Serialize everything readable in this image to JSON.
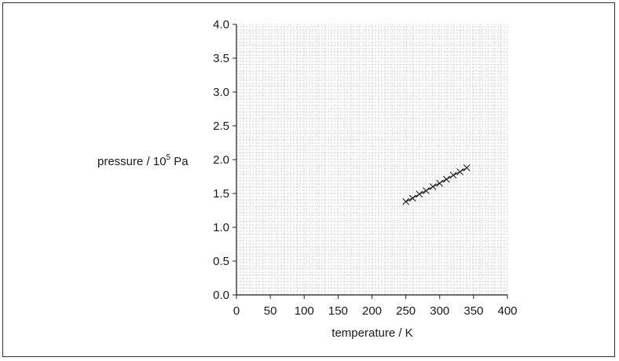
{
  "chart_data": {
    "type": "scatter",
    "xlabel": "temperature / K",
    "ylabel": {
      "prefix": "pressure / 10",
      "superscript": "5",
      "suffix": " Pa"
    },
    "xlim": [
      0,
      400
    ],
    "ylim": [
      0,
      4.0
    ],
    "x_ticks": [
      0,
      50,
      100,
      150,
      200,
      250,
      300,
      350,
      400
    ],
    "x_tick_labels": [
      "0",
      "50",
      "100",
      "150",
      "200",
      "250",
      "300",
      "350",
      "400"
    ],
    "y_ticks": [
      0,
      0.5,
      1.0,
      1.5,
      2.0,
      2.5,
      3.0,
      3.5,
      4.0
    ],
    "y_tick_labels": [
      "0.0",
      "0.5",
      "1.0",
      "1.5",
      "2.0",
      "2.5",
      "3.0",
      "3.5",
      "4.0"
    ],
    "grid": true,
    "marker": "x",
    "line_of_best_fit": true,
    "series": [
      {
        "x": [
          250,
          260,
          270,
          280,
          290,
          300,
          310,
          320,
          330,
          340
        ],
        "y": [
          1.38,
          1.43,
          1.49,
          1.54,
          1.6,
          1.65,
          1.71,
          1.77,
          1.82,
          1.88
        ],
        "color": "#222222"
      }
    ]
  }
}
